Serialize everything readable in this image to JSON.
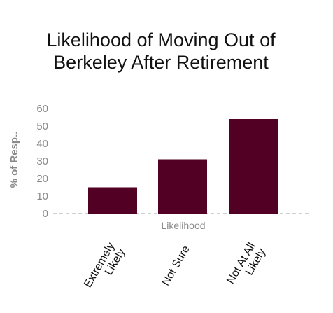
{
  "chart_data": {
    "type": "bar",
    "title_lines": [
      "Likelihood of Moving Out of",
      "Berkeley After Retirement"
    ],
    "xlabel": "Likelihood",
    "ylabel": "% of Resp..",
    "categories": [
      [
        "Extremely",
        "Likely"
      ],
      [
        "Not Sure"
      ],
      [
        "Not At All",
        "Likely"
      ]
    ],
    "values": [
      15,
      31,
      54
    ],
    "ylim": [
      0,
      60
    ],
    "yticks": [
      "0",
      "10",
      "20",
      "30",
      "40",
      "50",
      "60"
    ],
    "grid": false,
    "colors": {
      "bar": "#520024",
      "baseline": "#b5b5b5",
      "tick_text": "#8a8a8a",
      "title": "#111111"
    }
  }
}
